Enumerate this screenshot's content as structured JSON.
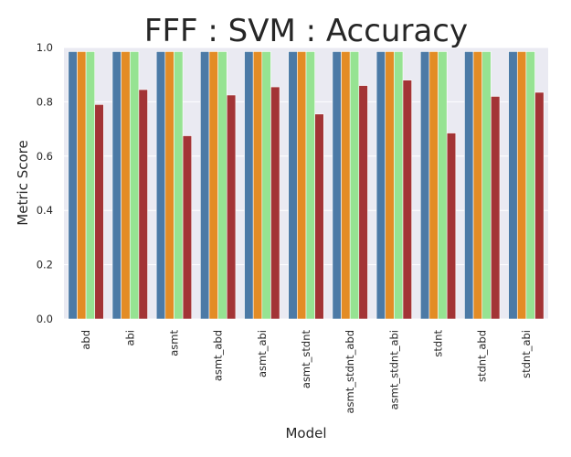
{
  "chart_data": {
    "type": "bar",
    "title": "FFF : SVM : Accuracy",
    "xlabel": "Model",
    "ylabel": "Metric Score",
    "ylim": [
      0,
      1.0
    ],
    "yticks": [
      "0.0",
      "0.2",
      "0.4",
      "0.6",
      "0.8",
      "1.0"
    ],
    "grid": true,
    "legend": "none",
    "categories": [
      "abd",
      "abi",
      "asmt",
      "asmt_abd",
      "asmt_abi",
      "asmt_stdnt",
      "asmt_stdnt_abd",
      "asmt_stdnt_abi",
      "stdnt",
      "stdnt_abd",
      "stdnt_abi"
    ],
    "series": [
      {
        "color": "#4c7aa6",
        "values": [
          0.985,
          0.985,
          0.985,
          0.985,
          0.985,
          0.985,
          0.985,
          0.985,
          0.985,
          0.985,
          0.985
        ]
      },
      {
        "color": "#e38c25",
        "values": [
          0.985,
          0.985,
          0.985,
          0.985,
          0.985,
          0.985,
          0.985,
          0.985,
          0.985,
          0.985,
          0.985
        ]
      },
      {
        "color": "#96e392",
        "values": [
          0.985,
          0.985,
          0.985,
          0.985,
          0.985,
          0.985,
          0.985,
          0.985,
          0.985,
          0.985,
          0.985
        ]
      },
      {
        "color": "#a33436",
        "values": [
          0.79,
          0.845,
          0.675,
          0.825,
          0.855,
          0.755,
          0.86,
          0.88,
          0.685,
          0.82,
          0.835
        ]
      }
    ],
    "plot_background": "#eaeaf2",
    "grid_color": "#ffffff"
  }
}
